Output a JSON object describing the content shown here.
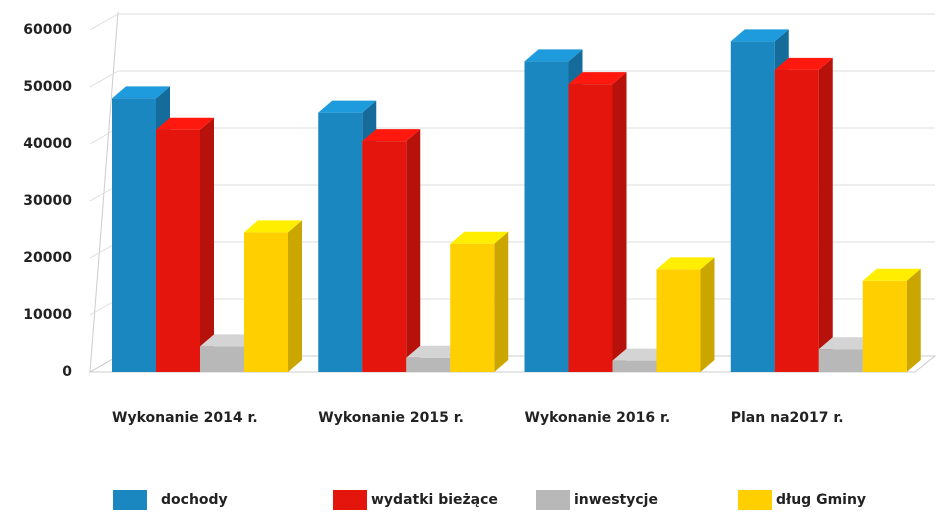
{
  "chart_data": {
    "type": "bar3d",
    "categories": [
      "Wykonanie 2014 r.",
      "Wykonanie 2015 r.",
      "Wykonanie 2016 r.",
      "Plan na2017 r."
    ],
    "series": [
      {
        "name": "dochody",
        "color": "#1a87c0",
        "values": [
          48000,
          45500,
          54500,
          58000
        ]
      },
      {
        "name": "wydatki bieżące",
        "color": "#e3150c",
        "values": [
          42500,
          40500,
          50500,
          53000
        ]
      },
      {
        "name": "inwestycje",
        "color": "#b8b8b8",
        "values": [
          4500,
          2500,
          2000,
          4000
        ]
      },
      {
        "name": "dług Gminy",
        "color": "#ffcf00",
        "values": [
          24500,
          22500,
          18000,
          16000
        ]
      }
    ],
    "ylim": [
      0,
      60000
    ],
    "yticks": [
      0,
      10000,
      20000,
      30000,
      40000,
      50000,
      60000
    ],
    "grid": true,
    "legend": "bottom"
  }
}
